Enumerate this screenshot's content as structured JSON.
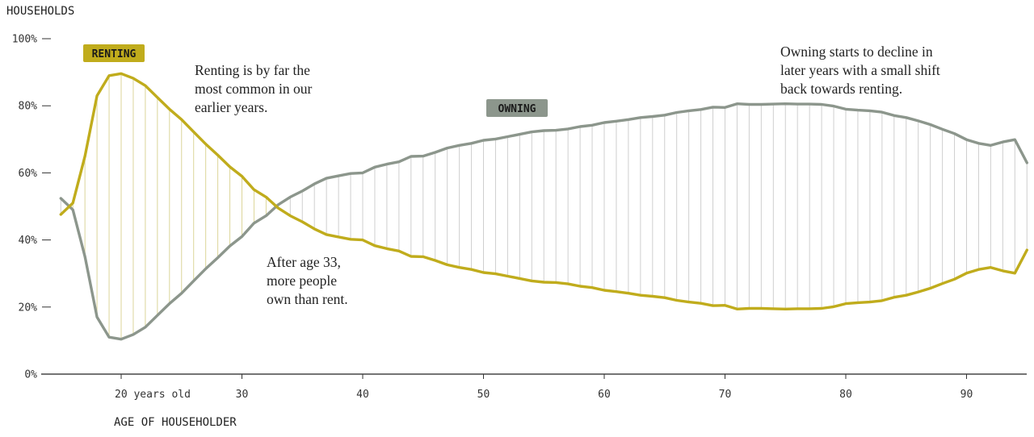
{
  "chart_data": {
    "type": "line",
    "ylabel": "HOUSEHOLDS",
    "xlabel": "AGE OF HOUSEHOLDER",
    "xlim": [
      15,
      95
    ],
    "ylim": [
      0,
      100
    ],
    "y_ticks": [
      {
        "value": 100,
        "label": "100%"
      },
      {
        "value": 80,
        "label": "80%"
      },
      {
        "value": 60,
        "label": "60%"
      },
      {
        "value": 40,
        "label": "40%"
      },
      {
        "value": 20,
        "label": "20%"
      },
      {
        "value": 0,
        "label": "0%"
      }
    ],
    "x_ticks": [
      {
        "value": 20,
        "label": "20 years old"
      },
      {
        "value": 30,
        "label": "30"
      },
      {
        "value": 40,
        "label": "40"
      },
      {
        "value": 50,
        "label": "50"
      },
      {
        "value": 60,
        "label": "60"
      },
      {
        "value": 70,
        "label": "70"
      },
      {
        "value": 80,
        "label": "80"
      },
      {
        "value": 90,
        "label": "90"
      }
    ],
    "x": [
      15,
      16,
      17,
      18,
      19,
      20,
      21,
      22,
      23,
      24,
      25,
      26,
      27,
      28,
      29,
      30,
      31,
      32,
      33,
      34,
      35,
      36,
      37,
      38,
      39,
      40,
      41,
      42,
      43,
      44,
      45,
      46,
      47,
      48,
      49,
      50,
      51,
      52,
      53,
      54,
      55,
      56,
      57,
      58,
      59,
      60,
      61,
      62,
      63,
      64,
      65,
      66,
      67,
      68,
      69,
      70,
      71,
      72,
      73,
      74,
      75,
      76,
      77,
      78,
      79,
      80,
      81,
      82,
      83,
      84,
      85,
      86,
      87,
      88,
      89,
      90,
      91,
      92,
      93,
      94,
      95
    ],
    "series": [
      {
        "name": "RENTING",
        "color": "#c0ac1c",
        "values": [
          47.6,
          51.0,
          65.0,
          83.0,
          89.0,
          89.6,
          88.2,
          86.0,
          82.5,
          79.0,
          75.9,
          72.2,
          68.6,
          65.3,
          61.8,
          59.0,
          55.0,
          52.8,
          49.5,
          47.2,
          45.4,
          43.3,
          41.6,
          40.9,
          40.2,
          40.0,
          38.3,
          37.4,
          36.7,
          35.1,
          35.0,
          33.9,
          32.6,
          31.8,
          31.2,
          30.3,
          29.9,
          29.2,
          28.5,
          27.8,
          27.4,
          27.3,
          26.9,
          26.2,
          25.8,
          25.0,
          24.6,
          24.1,
          23.5,
          23.2,
          22.8,
          22.0,
          21.5,
          21.1,
          20.4,
          20.5,
          19.4,
          19.6,
          19.6,
          19.5,
          19.4,
          19.5,
          19.5,
          19.6,
          20.1,
          21.0,
          21.3,
          21.5,
          21.9,
          22.9,
          23.5,
          24.5,
          25.6,
          27.0,
          28.3,
          30.1,
          31.2,
          31.8,
          30.8,
          30.1,
          37.0
        ]
      },
      {
        "name": "OWNING",
        "color": "#8c968c",
        "values": [
          52.4,
          49.0,
          35.0,
          17.0,
          11.0,
          10.4,
          11.8,
          14.0,
          17.5,
          21.0,
          24.1,
          27.8,
          31.4,
          34.7,
          38.2,
          41.0,
          45.0,
          47.2,
          50.5,
          52.8,
          54.6,
          56.7,
          58.4,
          59.1,
          59.8,
          60.0,
          61.7,
          62.6,
          63.3,
          64.9,
          65.0,
          66.1,
          67.4,
          68.2,
          68.8,
          69.7,
          70.1,
          70.8,
          71.5,
          72.2,
          72.6,
          72.7,
          73.1,
          73.8,
          74.2,
          75.0,
          75.4,
          75.9,
          76.5,
          76.8,
          77.2,
          78.0,
          78.5,
          78.9,
          79.6,
          79.5,
          80.6,
          80.4,
          80.4,
          80.5,
          80.6,
          80.5,
          80.5,
          80.4,
          79.9,
          79.0,
          78.7,
          78.5,
          78.1,
          77.1,
          76.5,
          75.5,
          74.4,
          73.0,
          71.7,
          69.9,
          68.8,
          68.2,
          69.2,
          69.9,
          63.0
        ]
      }
    ],
    "labels": {
      "renting_tag": "RENTING",
      "owning_tag": "OWNING"
    },
    "annotations": [
      {
        "id": "renting-note",
        "lines": [
          "Renting is by far the",
          "most common in our",
          "earlier years."
        ]
      },
      {
        "id": "crossover-note",
        "lines": [
          "After age 33,",
          "more people",
          "own than rent."
        ]
      },
      {
        "id": "late-note",
        "lines": [
          "Owning starts to decline in",
          "later years with a small shift",
          "back towards renting."
        ]
      }
    ],
    "tag_colors": {
      "renting_bg": "#c0ac1c",
      "owning_bg": "#8c968c"
    }
  }
}
